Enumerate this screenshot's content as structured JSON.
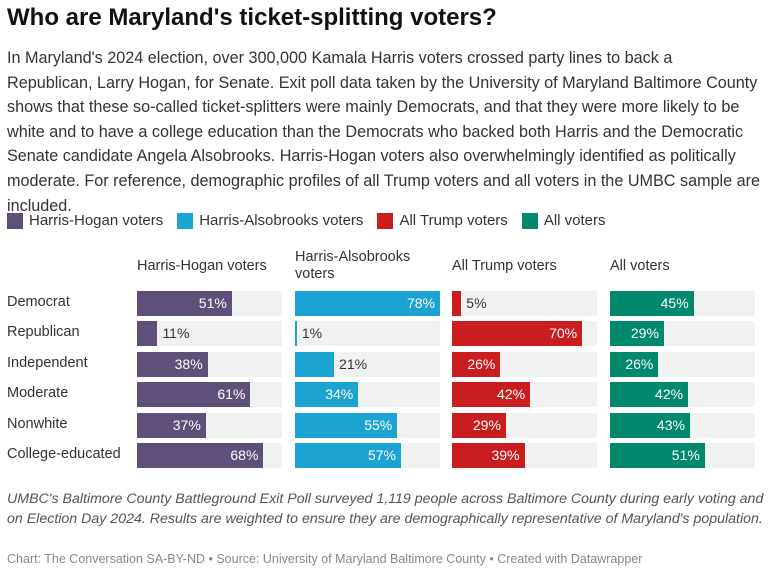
{
  "title": "Who are Maryland's ticket-splitting voters?",
  "intro": "In Maryland's 2024 election, over 300,000 Kamala Harris voters crossed party lines to back a Republican, Larry Hogan, for Senate. Exit poll data taken by the University of Maryland Baltimore County shows that these so-called ticket-splitters were mainly Democrats, and that they were more likely to be white and to have a college education than the Democrats who backed both Harris and the Democratic Senate candidate Angela Alsobrooks. Harris-Hogan voters also overwhelmingly identified as politically moderate. For reference, demographic profiles of all Trump voters and all voters in the UMBC sample are included.",
  "notes": "UMBC's Baltimore County Battleground Exit Poll surveyed 1,119 people across Baltimore County during early voting and on Election Day 2024. Results are weighted to ensure they are demographically representative of Maryland's population.",
  "footer": "Chart: The Conversation SA-BY-ND • Source: University of Maryland Baltimore County • Created with Datawrapper",
  "chart_data": {
    "type": "bar",
    "categories": [
      "Democrat",
      "Republican",
      "Independent",
      "Moderate",
      "Nonwhite",
      "College-educated"
    ],
    "unit": "%",
    "legend_position": "top",
    "series": [
      {
        "name": "Harris-Hogan voters",
        "color": "#5e5078",
        "values": [
          51,
          11,
          38,
          61,
          37,
          68
        ]
      },
      {
        "name": "Harris-Alsobrooks voters",
        "color": "#1ba3d1",
        "values": [
          78,
          1,
          21,
          34,
          55,
          57
        ]
      },
      {
        "name": "All Trump voters",
        "color": "#c91d1f",
        "values": [
          5,
          70,
          26,
          42,
          29,
          39
        ]
      },
      {
        "name": "All voters",
        "color": "#00896d",
        "values": [
          45,
          29,
          26,
          42,
          43,
          51
        ]
      }
    ]
  }
}
